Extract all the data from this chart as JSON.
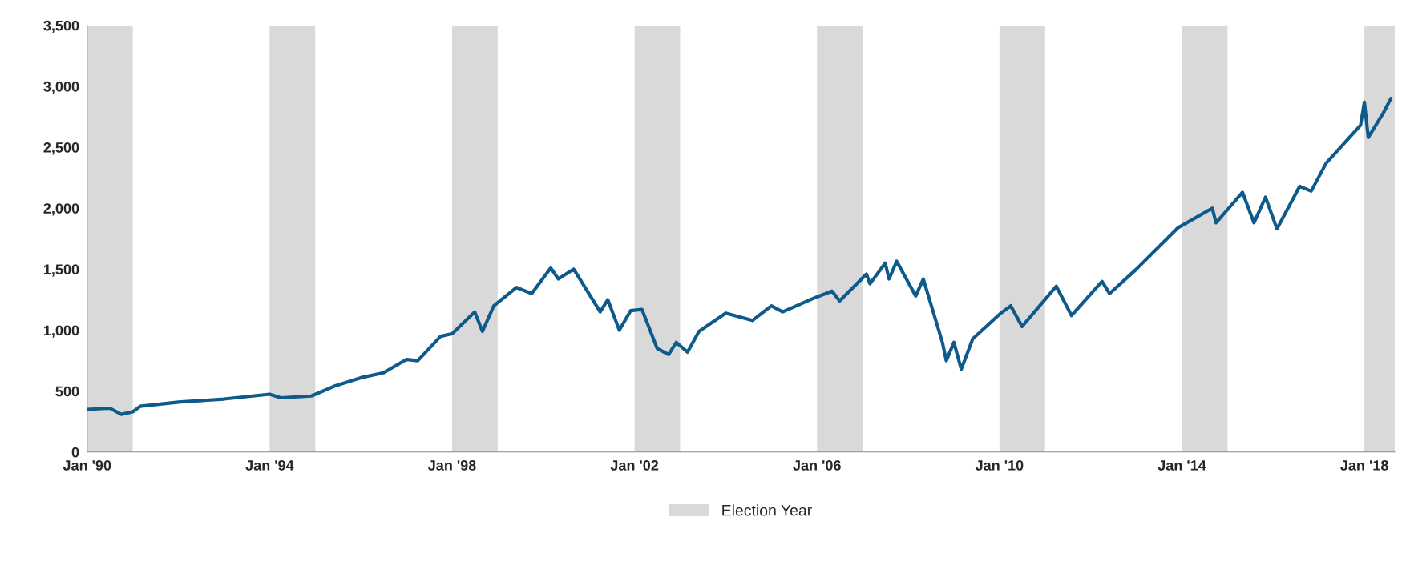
{
  "chart_data": {
    "type": "line",
    "x": [
      "1990-01",
      "1990-07",
      "1990-10",
      "1991-01",
      "1991-03",
      "1992-01",
      "1993-01",
      "1994-01",
      "1994-04",
      "1994-12",
      "1995-06",
      "1996-01",
      "1996-07",
      "1997-01",
      "1997-04",
      "1997-10",
      "1998-01",
      "1998-07",
      "1998-09",
      "1998-12",
      "1999-06",
      "1999-10",
      "2000-03",
      "2000-05",
      "2000-09",
      "2001-04",
      "2001-06",
      "2001-09",
      "2001-12",
      "2002-03",
      "2002-07",
      "2002-10",
      "2002-12",
      "2003-03",
      "2003-06",
      "2004-01",
      "2004-08",
      "2005-01",
      "2005-04",
      "2005-12",
      "2006-05",
      "2006-07",
      "2007-02",
      "2007-03",
      "2007-07",
      "2007-08",
      "2007-10",
      "2008-03",
      "2008-05",
      "2008-10",
      "2008-11",
      "2009-01",
      "2009-03",
      "2009-06",
      "2010-01",
      "2010-04",
      "2010-07",
      "2011-04",
      "2011-08",
      "2012-04",
      "2012-06",
      "2013-01",
      "2013-12",
      "2014-09",
      "2014-10",
      "2015-05",
      "2015-08",
      "2015-11",
      "2016-02",
      "2016-08",
      "2016-11",
      "2017-03",
      "2017-12",
      "2018-01",
      "2018-02",
      "2018-06",
      "2018-08"
    ],
    "series": [
      {
        "color": "#0e5a8a",
        "values": [
          350,
          360,
          310,
          330,
          375,
          410,
          435,
          475,
          445,
          460,
          540,
          610,
          650,
          760,
          750,
          950,
          970,
          1150,
          990,
          1200,
          1350,
          1300,
          1510,
          1420,
          1500,
          1150,
          1250,
          1000,
          1160,
          1170,
          850,
          800,
          900,
          820,
          990,
          1140,
          1080,
          1200,
          1150,
          1260,
          1320,
          1240,
          1460,
          1380,
          1550,
          1420,
          1565,
          1280,
          1420,
          900,
          750,
          900,
          680,
          930,
          1130,
          1200,
          1030,
          1360,
          1120,
          1400,
          1300,
          1500,
          1840,
          2000,
          1880,
          2130,
          1880,
          2090,
          1830,
          2180,
          2140,
          2370,
          2680,
          2870,
          2580,
          2780,
          2900
        ]
      }
    ],
    "xlim": [
      "1990-01",
      "2018-09"
    ],
    "xticks": [
      {
        "value": "1990-01",
        "label": "Jan '90"
      },
      {
        "value": "1994-01",
        "label": "Jan '94"
      },
      {
        "value": "1998-01",
        "label": "Jan '98"
      },
      {
        "value": "2002-01",
        "label": "Jan '02"
      },
      {
        "value": "2006-01",
        "label": "Jan '06"
      },
      {
        "value": "2010-01",
        "label": "Jan '10"
      },
      {
        "value": "2014-01",
        "label": "Jan '14"
      },
      {
        "value": "2018-01",
        "label": "Jan '18"
      }
    ],
    "ylim": [
      0,
      3500
    ],
    "yticks": [
      0,
      500,
      {
        "value": 1000,
        "label": "1,000"
      },
      {
        "value": 1500,
        "label": "1,500"
      },
      {
        "value": 2000,
        "label": "2,000"
      },
      {
        "value": 2500,
        "label": "2,500"
      },
      {
        "value": 3000,
        "label": "3,000"
      },
      {
        "value": 3500,
        "label": "3,500"
      }
    ],
    "bands": [
      {
        "axis": "x",
        "from": "1990-01",
        "to": "1991-01",
        "label": "Election Year",
        "color": "#d9d9d9"
      },
      {
        "axis": "x",
        "from": "1994-01",
        "to": "1995-01",
        "color": "#d9d9d9"
      },
      {
        "axis": "x",
        "from": "1998-01",
        "to": "1999-01",
        "color": "#d9d9d9"
      },
      {
        "axis": "x",
        "from": "2002-01",
        "to": "2003-01",
        "color": "#d9d9d9"
      },
      {
        "axis": "x",
        "from": "2006-01",
        "to": "2007-01",
        "color": "#d9d9d9"
      },
      {
        "axis": "x",
        "from": "2010-01",
        "to": "2011-01",
        "color": "#d9d9d9"
      },
      {
        "axis": "x",
        "from": "2014-01",
        "to": "2015-01",
        "color": "#d9d9d9"
      },
      {
        "axis": "x",
        "from": "2018-01",
        "to": "2018-09",
        "color": "#d9d9d9"
      }
    ],
    "grid": false,
    "legend": "bottom"
  }
}
